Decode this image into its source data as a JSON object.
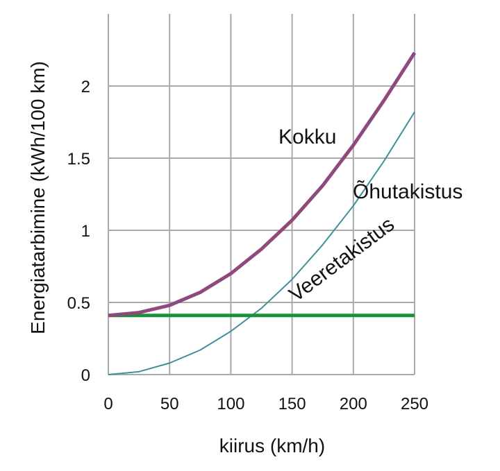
{
  "chart_data": {
    "type": "line",
    "xlabel": "kiirus (km/h)",
    "ylabel": "Energiatarbimine (kWh/100 km)",
    "xlim": [
      0,
      250
    ],
    "ylim": [
      0,
      2.5
    ],
    "grid": true,
    "x_ticks": [
      "0",
      "50",
      "100",
      "150",
      "200",
      "250"
    ],
    "y_ticks": [
      "0",
      "0.5",
      "1",
      "1.5",
      "2"
    ],
    "series": [
      {
        "name": "Kokku",
        "color": "#8e4a7e",
        "x": [
          0,
          25,
          50,
          75,
          100,
          125,
          150,
          175,
          200,
          225,
          250
        ],
        "y": [
          0.41,
          0.43,
          0.48,
          0.57,
          0.7,
          0.87,
          1.07,
          1.31,
          1.59,
          1.9,
          2.23
        ]
      },
      {
        "name": "Õhutakistus",
        "color": "#3d9198",
        "x": [
          0,
          25,
          50,
          75,
          100,
          125,
          150,
          175,
          200,
          225,
          250
        ],
        "y": [
          0.0,
          0.02,
          0.08,
          0.17,
          0.3,
          0.46,
          0.66,
          0.9,
          1.17,
          1.48,
          1.82
        ]
      },
      {
        "name": "Veeretakistus",
        "color": "#1a8f3c",
        "x": [
          0,
          250
        ],
        "y": [
          0.41,
          0.41
        ]
      }
    ]
  }
}
